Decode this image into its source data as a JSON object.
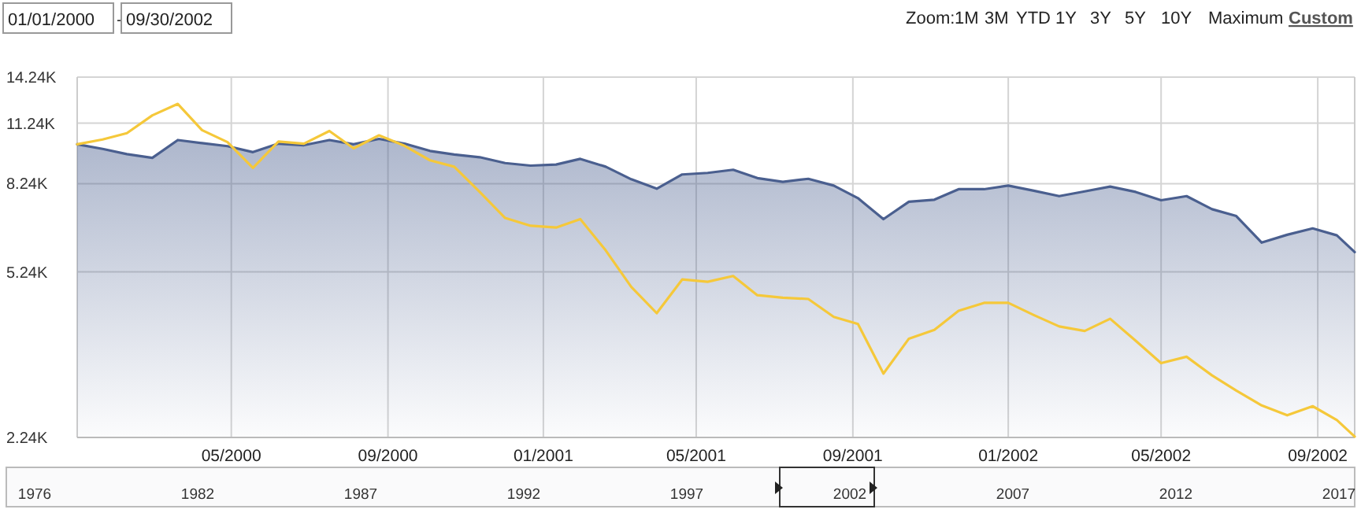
{
  "chart_data": {
    "type": "line",
    "log": true,
    "grid": true,
    "xlim": [
      "2000-01-01",
      "2002-09-30"
    ],
    "xticks": [
      {
        "value": "2000-05-01",
        "label": "05/2000"
      },
      {
        "value": "2000-09-01",
        "label": "09/2000"
      },
      {
        "value": "2001-01-01",
        "label": "01/2001"
      },
      {
        "value": "2001-05-01",
        "label": "05/2001"
      },
      {
        "value": "2001-09-01",
        "label": "09/2001"
      },
      {
        "value": "2002-01-01",
        "label": "01/2002"
      },
      {
        "value": "2002-05-01",
        "label": "05/2002"
      },
      {
        "value": "2002-09-01",
        "label": "09/2002"
      }
    ],
    "ylim": [
      2240,
      14240
    ],
    "yticks": [
      {
        "value": 2240,
        "label": "2.24K"
      },
      {
        "value": 5240,
        "label": "5.24K"
      },
      {
        "value": 8240,
        "label": "8.24K"
      },
      {
        "value": 11240,
        "label": "11.24K"
      },
      {
        "value": 14240,
        "label": "14.24K"
      }
    ],
    "x": [
      "2000-01-01",
      "2000-01-21",
      "2000-02-09",
      "2000-02-29",
      "2000-03-20",
      "2000-04-08",
      "2000-04-28",
      "2000-05-18",
      "2000-06-07",
      "2000-06-27",
      "2000-07-17",
      "2000-08-05",
      "2000-08-25",
      "2000-09-14",
      "2000-10-04",
      "2000-10-23",
      "2000-11-12",
      "2000-12-02",
      "2000-12-22",
      "2001-01-11",
      "2001-01-30",
      "2001-02-19",
      "2001-03-11",
      "2001-03-31",
      "2001-04-20",
      "2001-05-10",
      "2001-05-30",
      "2001-06-18",
      "2001-07-08",
      "2001-07-28",
      "2001-08-17",
      "2001-09-05",
      "2001-09-25",
      "2001-10-15",
      "2001-11-04",
      "2001-11-23",
      "2001-12-13",
      "2002-01-01",
      "2002-01-21",
      "2002-02-10",
      "2002-03-02",
      "2002-03-22",
      "2002-04-11",
      "2002-05-01",
      "2002-05-21",
      "2002-06-10",
      "2002-06-29",
      "2002-07-19",
      "2002-08-08",
      "2002-08-28",
      "2002-09-16",
      "2002-09-30"
    ],
    "series": [
      {
        "type": "area",
        "color": "#4a5f8f",
        "values": [
          10090,
          9850,
          9590,
          9410,
          10310,
          10150,
          9990,
          9690,
          10120,
          10040,
          10310,
          10090,
          10370,
          10120,
          9750,
          9570,
          9440,
          9160,
          9040,
          9090,
          9360,
          8990,
          8430,
          8030,
          8640,
          8710,
          8850,
          8480,
          8320,
          8450,
          8160,
          7650,
          6870,
          7510,
          7590,
          8010,
          8010,
          8160,
          7950,
          7730,
          7920,
          8120,
          7900,
          7570,
          7730,
          7230,
          6980,
          6090,
          6340,
          6550,
          6320,
          5800
        ]
      },
      {
        "color": "#f5c83a",
        "values": [
          10090,
          10340,
          10680,
          11700,
          12410,
          10850,
          10200,
          8940,
          10230,
          10120,
          10800,
          9880,
          10560,
          10010,
          9290,
          8990,
          7900,
          6910,
          6640,
          6580,
          6870,
          5850,
          4850,
          4240,
          5040,
          4980,
          5130,
          4650,
          4590,
          4560,
          4160,
          4010,
          3110,
          3720,
          3890,
          4290,
          4470,
          4470,
          4200,
          3960,
          3870,
          4120,
          3680,
          3280,
          3390,
          3080,
          2850,
          2640,
          2510,
          2630,
          2450,
          2250
        ]
      }
    ],
    "annotations": [
      "01/01/2000",
      "-",
      "09/30/2002",
      "Zoom:",
      "1M",
      "3M",
      "YTD",
      "1Y",
      "3Y",
      "5Y",
      "10Y",
      "Maximum",
      "Custom",
      "1976",
      "1982",
      "1987",
      "1992",
      "1997",
      "2002",
      "2007",
      "2012",
      "2017"
    ]
  }
}
